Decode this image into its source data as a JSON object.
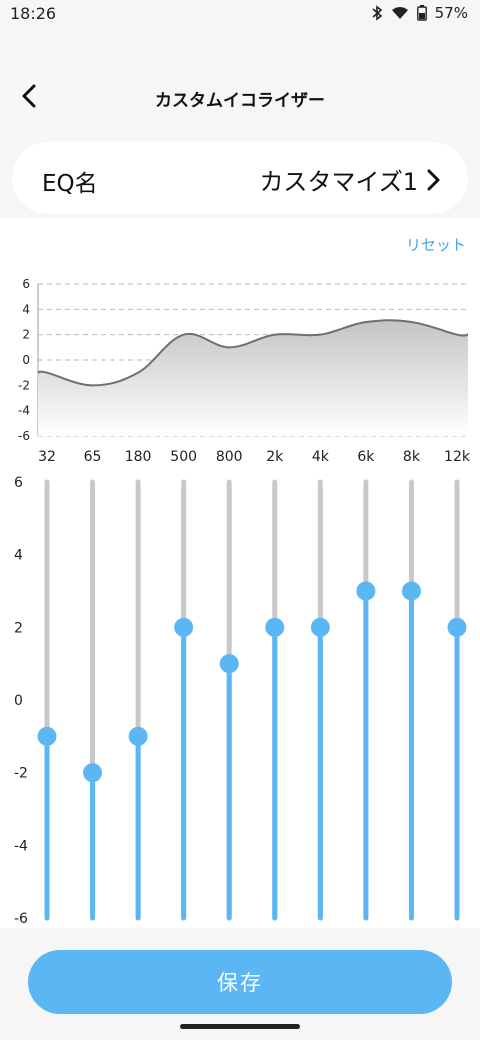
{
  "status_bar": {
    "time": "18:26",
    "battery": "57%",
    "icons": [
      "bluetooth-icon",
      "wifi-icon",
      "battery-icon"
    ]
  },
  "header": {
    "title": "カスタムイコライザー",
    "back_icon": "chevron-left-icon"
  },
  "eq_name": {
    "label": "EQ名",
    "value": "カスタマイズ1",
    "chevron_icon": "chevron-right-icon"
  },
  "reset_label": "リセット",
  "save_label": "保存",
  "colors": {
    "accent": "#5bb6f4",
    "link": "#42a6ee",
    "track": "#c8c8c8",
    "curve": "#6f6f6f"
  },
  "chart_data": {
    "type": "line",
    "categories": [
      "32",
      "65",
      "180",
      "500",
      "800",
      "2k",
      "4k",
      "6k",
      "8k",
      "12k"
    ],
    "values": [
      -1,
      -2,
      -1,
      2,
      1,
      2,
      2,
      3,
      3,
      2
    ],
    "ylim": [
      -6,
      6
    ],
    "y_ticks": [
      "6",
      "4",
      "2",
      "0",
      "-2",
      "-4",
      "-6"
    ],
    "grid": true
  },
  "sliders": {
    "y_labels": [
      "6",
      "4",
      "2",
      "0",
      "-2",
      "-4",
      "-6"
    ],
    "min": -6,
    "max": 6
  }
}
